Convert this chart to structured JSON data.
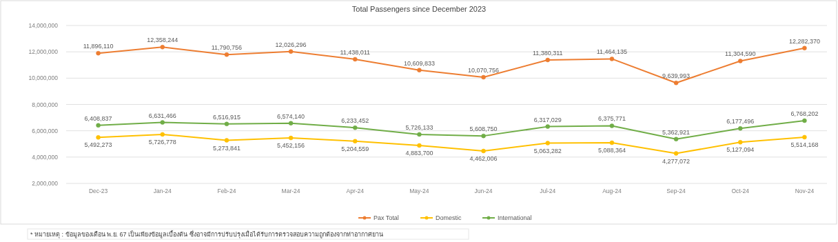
{
  "chart_data": {
    "type": "line",
    "title": "Total Passengers since December 2023",
    "categories": [
      "Dec-23",
      "Jan-24",
      "Feb-24",
      "Mar-24",
      "Apr-24",
      "May-24",
      "Jun-24",
      "Jul-24",
      "Aug-24",
      "Sep-24",
      "Oct-24",
      "Nov-24"
    ],
    "series": [
      {
        "name": "Pax Total",
        "color": "#ed7d31",
        "values": [
          11896110,
          12358244,
          11790756,
          12026296,
          11438011,
          10609833,
          10070756,
          11380311,
          11464135,
          9639993,
          11304590,
          12282370
        ],
        "value_labels": [
          "11,896,110",
          "12,358,244",
          "11,790,756",
          "12,026,296",
          "11,438,011",
          "10,609,833",
          "10,070,756",
          "11,380,311",
          "11,464,135",
          "9,639,993",
          "11,304,590",
          "12,282,370"
        ]
      },
      {
        "name": "Domestic",
        "color": "#ffc000",
        "values": [
          5492273,
          5726778,
          5273841,
          5452156,
          5204559,
          4883700,
          4462006,
          5063282,
          5088364,
          4277072,
          5127094,
          5514168
        ],
        "value_labels": [
          "5,492,273",
          "5,726,778",
          "5,273,841",
          "5,452,156",
          "5,204,559",
          "4,883,700",
          "4,462,006",
          "5,063,282",
          "5,088,364",
          "4,277,072",
          "5,127,094",
          "5,514,168"
        ]
      },
      {
        "name": "International",
        "color": "#70ad47",
        "values": [
          6408837,
          6631466,
          6516915,
          6574140,
          6233452,
          5726133,
          5608750,
          6317029,
          6375771,
          5362921,
          6177496,
          6768202
        ],
        "value_labels": [
          "6,408,837",
          "6,631,466",
          "6,516,915",
          "6,574,140",
          "6,233,452",
          "5,726,133",
          "5,608,750",
          "6,317,029",
          "6,375,771",
          "5,362,921",
          "6,177,496",
          "6,768,202"
        ]
      }
    ],
    "ylim": [
      2000000,
      14000000
    ],
    "yticks": [
      {
        "value": 2000000,
        "label": "2,000,000"
      },
      {
        "value": 4000000,
        "label": "4,000,000"
      },
      {
        "value": 6000000,
        "label": "6,000,000"
      },
      {
        "value": 8000000,
        "label": "8,000,000"
      },
      {
        "value": 10000000,
        "label": "10,000,000"
      },
      {
        "value": 12000000,
        "label": "12,000,000"
      },
      {
        "value": 14000000,
        "label": "14,000,000"
      }
    ],
    "grid": "y",
    "legend": "bottom",
    "marker": "circle",
    "line_style": "solid",
    "annotations": [
      "* หมายเหตุ : ข้อมูลของเดือน พ.ย. 67 เป็นเพียงข้อมูลเบื้องต้น ซึ่งอาจมีการปรับปรุงเมื่อได้รับการตรวจสอบความถูกต้องจากท่าอากาศยาน"
    ]
  }
}
